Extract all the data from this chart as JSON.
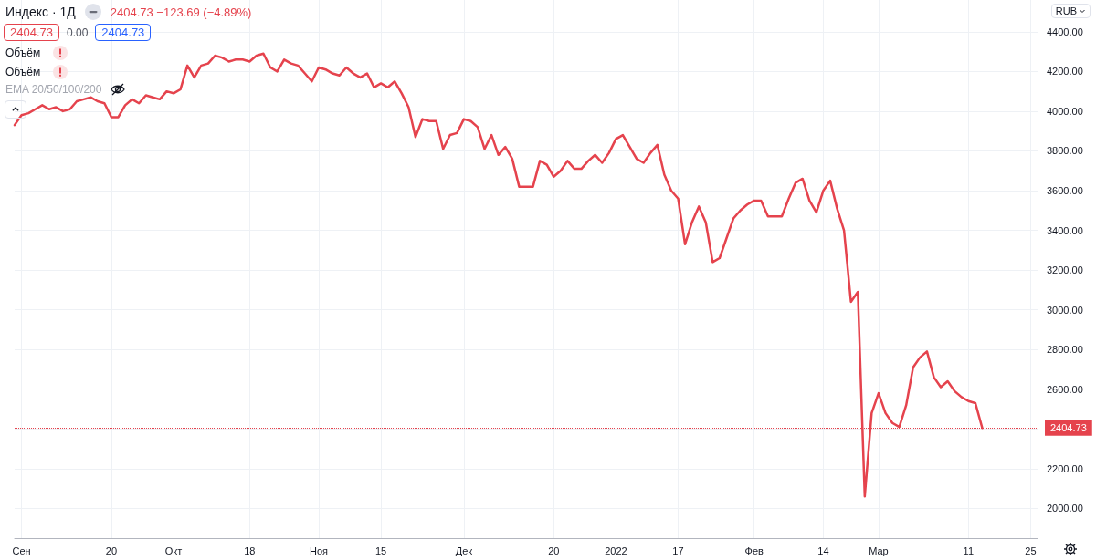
{
  "chart_data": {
    "type": "line",
    "title": "Индекс · 1Д",
    "annotations": [
      "2404.73 −123.69 (−4.89%)",
      "2404.73",
      "0.00",
      "2404.73",
      "Объём",
      "Объём",
      "EMA 20/50/100/200",
      "RUB"
    ],
    "categories": [
      null,
      "Сен",
      null,
      null,
      null,
      null,
      null,
      null,
      null,
      null,
      null,
      null,
      null,
      null,
      "20",
      null,
      null,
      null,
      null,
      null,
      null,
      null,
      null,
      "Окт",
      null,
      null,
      null,
      null,
      null,
      null,
      null,
      null,
      null,
      null,
      "18",
      null,
      null,
      null,
      null,
      null,
      null,
      null,
      null,
      null,
      "Ноя",
      null,
      null,
      null,
      null,
      null,
      null,
      null,
      null,
      "15",
      null,
      null,
      null,
      null,
      null,
      null,
      null,
      null,
      null,
      null,
      null,
      "Дек",
      null,
      null,
      null,
      null,
      null,
      null,
      null,
      null,
      null,
      null,
      null,
      null,
      "20",
      null,
      null,
      null,
      null,
      null,
      null,
      null,
      null,
      "2022",
      null,
      null,
      null,
      null,
      null,
      null,
      null,
      null,
      "17",
      null,
      null,
      null,
      null,
      null,
      null,
      null,
      null,
      null,
      null,
      "Фев",
      null,
      null,
      null,
      null,
      null,
      null,
      null,
      null,
      null,
      "14",
      null,
      null,
      null,
      null,
      null,
      null,
      null,
      "Мар",
      null,
      null,
      null,
      null,
      null,
      null,
      null,
      null,
      null,
      null,
      null,
      null,
      "11",
      null,
      null,
      null,
      null,
      null,
      null,
      null,
      null,
      "25",
      null
    ],
    "series": [
      {
        "color": "#e5434d",
        "values": [
          3930,
          3980,
          3990,
          4010,
          4030,
          4010,
          4020,
          4000,
          4010,
          4050,
          4060,
          4070,
          4050,
          4040,
          3970,
          3970,
          4030,
          4060,
          4040,
          4080,
          4070,
          4060,
          4100,
          4090,
          4110,
          4230,
          4170,
          4230,
          4240,
          4280,
          4270,
          4250,
          4260,
          4260,
          4250,
          4280,
          4290,
          4220,
          4200,
          4260,
          4240,
          4230,
          4190,
          4150,
          4220,
          4210,
          4190,
          4180,
          4220,
          4190,
          4170,
          4190,
          4120,
          4140,
          4120,
          4150,
          4090,
          4020,
          3870,
          3960,
          3950,
          3950,
          3810,
          3880,
          3890,
          3960,
          3950,
          3920,
          3810,
          3880,
          3780,
          3820,
          3760,
          3620,
          3620,
          3620,
          3750,
          3730,
          3670,
          3700,
          3750,
          3710,
          3710,
          3750,
          3780,
          3740,
          3790,
          3860,
          3880,
          3820,
          3760,
          3740,
          3790,
          3830,
          3680,
          3600,
          3560,
          3330,
          3440,
          3520,
          3440,
          3240,
          3260,
          3360,
          3460,
          3500,
          3530,
          3550,
          3550,
          3470,
          3470,
          3470,
          3560,
          3640,
          3660,
          3550,
          3490,
          3600,
          3650,
          3510,
          3400,
          3040,
          3090,
          2060,
          2480,
          2580,
          2480,
          2430,
          2410,
          2520,
          2710,
          2760,
          2790,
          2660,
          2610,
          2640,
          2590,
          2560,
          2540,
          2530,
          2404.73,
          null,
          null,
          null,
          null,
          null,
          null,
          null,
          null
        ]
      }
    ],
    "ylim": [
      1850,
      4560
    ],
    "yticks": [
      {
        "value": 2000,
        "label": "2000.00"
      },
      {
        "value": 2200,
        "label": "2200.00"
      },
      {
        "value": 2400,
        "label": null
      },
      {
        "value": 2600,
        "label": "2600.00"
      },
      {
        "value": 2800,
        "label": "2800.00"
      },
      {
        "value": 3000,
        "label": "3000.00"
      },
      {
        "value": 3200,
        "label": "3200.00"
      },
      {
        "value": 3400,
        "label": "3400.00"
      },
      {
        "value": 3600,
        "label": "3600.00"
      },
      {
        "value": 3800,
        "label": "3800.00"
      },
      {
        "value": 4000,
        "label": "4000.00"
      },
      {
        "value": 4200,
        "label": "4200.00"
      },
      {
        "value": 4400,
        "label": "4400.00"
      }
    ],
    "ref_lines": [
      {
        "axis": "y",
        "value": 2404.73,
        "label": "2404.73",
        "color": "#e5434d",
        "line_style": "dotted"
      }
    ],
    "grid": true,
    "marker": "none",
    "line_style": "solid"
  }
}
